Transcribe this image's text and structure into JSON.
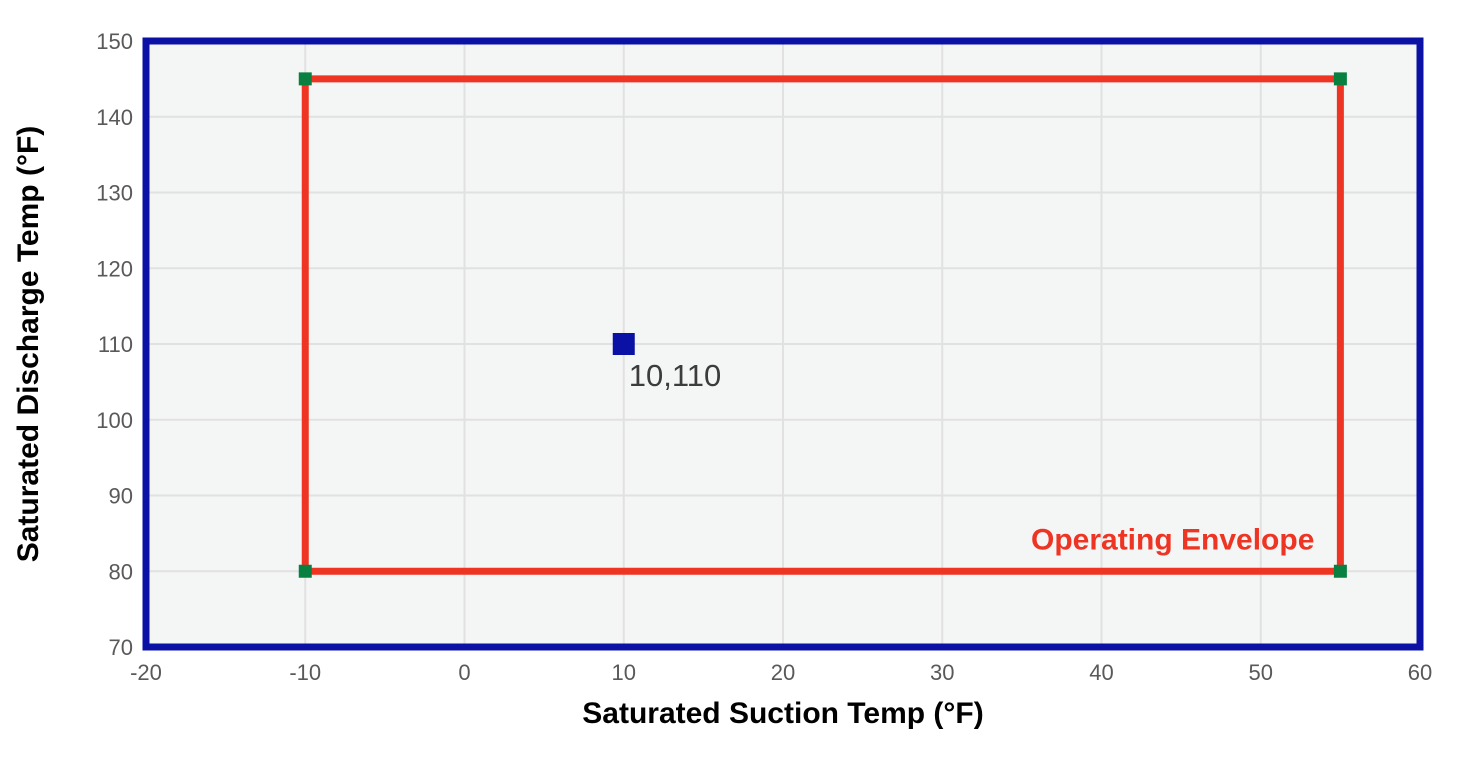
{
  "chart_data": {
    "type": "scatter",
    "title": "",
    "xlabel": "Saturated Suction Temp (°F)",
    "ylabel": "Saturated Discharge Temp (°F)",
    "xlim": [
      -20,
      60
    ],
    "ylim": [
      70,
      150
    ],
    "xticks": [
      -20,
      -10,
      0,
      10,
      20,
      30,
      40,
      50,
      60
    ],
    "yticks": [
      70,
      80,
      90,
      100,
      110,
      120,
      130,
      140,
      150
    ],
    "grid": true,
    "legend_position": "none",
    "envelope": {
      "label": "Operating Envelope",
      "x_range": [
        -10,
        55
      ],
      "y_range": [
        80,
        145
      ],
      "line_color": "#ee3524",
      "corner_marker_color": "#088040",
      "corners": [
        [
          -10,
          80
        ],
        [
          -10,
          145
        ],
        [
          55,
          145
        ],
        [
          55,
          80
        ]
      ]
    },
    "points": [
      {
        "x": 10,
        "y": 110,
        "label": "10,110",
        "color": "#0b11a5"
      }
    ],
    "colors": {
      "plot_border": "#0b11a5",
      "plot_bg": "#f4f5f5",
      "gridline": "#e1e1e1",
      "tick_label": "#595959",
      "axis_title": "#000000",
      "point_label": "#3c3c3c"
    }
  }
}
